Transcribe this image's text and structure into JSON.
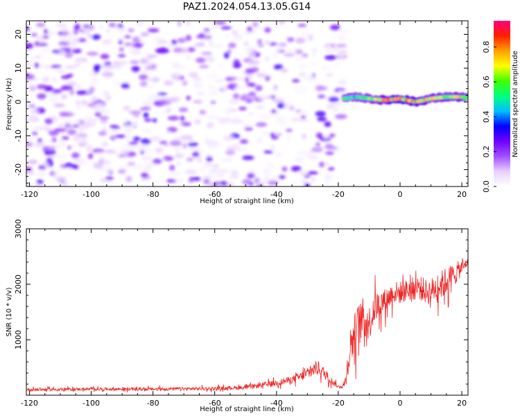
{
  "title": "PAZ1.2024.054.13.05.G14",
  "chart_data": [
    {
      "type": "heatmap",
      "name": "spectrogram",
      "xlabel": "Height of straight line (km)",
      "ylabel": "Frequency (Hz)",
      "xlim": [
        -121,
        22
      ],
      "ylim": [
        -25,
        24
      ],
      "x_ticks": [
        -120,
        -100,
        -80,
        -60,
        -40,
        -20,
        0,
        20
      ],
      "y_ticks": [
        -20,
        -10,
        0,
        10,
        20
      ],
      "colorbar": {
        "label": "Normalized spectral amplitude",
        "range": [
          0.0,
          0.95
        ],
        "ticks": [
          0.0,
          0.2,
          0.4,
          0.6,
          0.8
        ],
        "colormap": [
          "#ffffff",
          "#e8d0ff",
          "#a050ff",
          "#7000ff",
          "#0000ff",
          "#00c0ff",
          "#00ff80",
          "#40ff00",
          "#ffff00",
          "#ffa000",
          "#ff2000",
          "#ff0080"
        ]
      },
      "features": {
        "noise_region_x": [
          -121,
          -18
        ],
        "noise_amplitude_range": [
          0.02,
          0.3
        ],
        "signal_track": {
          "x": [
            -18,
            -14,
            -10,
            -5,
            0,
            5,
            10,
            15,
            20,
            22
          ],
          "frequency": [
            1.0,
            1.5,
            1.0,
            0.5,
            1.0,
            0.0,
            1.0,
            1.5,
            1.5,
            1.0
          ],
          "amplitude": [
            0.55,
            0.5,
            0.6,
            0.75,
            0.85,
            0.8,
            0.7,
            0.65,
            0.8,
            0.6
          ]
        }
      },
      "grid": false
    },
    {
      "type": "line",
      "name": "snr",
      "xlabel": "Height of straight line (km)",
      "ylabel": "SNR (10 * v/v)",
      "xlim": [
        -121,
        22
      ],
      "ylim": [
        0,
        3000
      ],
      "x_ticks": [
        -120,
        -100,
        -80,
        -60,
        -40,
        -20,
        0,
        20
      ],
      "y_ticks": [
        1000,
        2000,
        3000
      ],
      "color": "#ee2222",
      "envelope": {
        "x": [
          -121,
          -100,
          -80,
          -60,
          -50,
          -45,
          -40,
          -35,
          -30,
          -27,
          -25,
          -22,
          -20,
          -18,
          -16,
          -14,
          -12,
          -10,
          -8,
          -5,
          -2,
          0,
          3,
          6,
          9,
          12,
          15,
          18,
          20,
          22
        ],
        "mean": [
          100,
          110,
          110,
          120,
          140,
          180,
          220,
          280,
          380,
          500,
          420,
          250,
          150,
          180,
          900,
          1200,
          1400,
          1300,
          1600,
          1700,
          1850,
          1850,
          1900,
          1950,
          1850,
          1950,
          2050,
          2200,
          2300,
          2400
        ],
        "spread": [
          60,
          60,
          65,
          70,
          80,
          100,
          120,
          150,
          220,
          300,
          250,
          140,
          60,
          120,
          800,
          900,
          800,
          700,
          600,
          500,
          450,
          450,
          450,
          500,
          500,
          550,
          600,
          450,
          300,
          150
        ]
      },
      "grid": false
    }
  ]
}
